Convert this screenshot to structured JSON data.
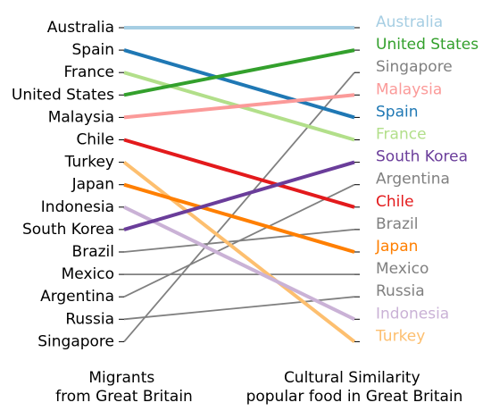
{
  "chart_data": {
    "type": "line",
    "subtype": "slope",
    "x": [
      "Migrants from Great Britain",
      "Cultural Similarity popular food in Great Britain"
    ],
    "xlabel_lines": [
      [
        "Migrants",
        "from Great Britain"
      ],
      [
        "Cultural Similarity",
        "popular food in Great Britain"
      ]
    ],
    "left_order": [
      "Australia",
      "Spain",
      "France",
      "United States",
      "Malaysia",
      "Chile",
      "Turkey",
      "Japan",
      "Indonesia",
      "South Korea",
      "Brazil",
      "Mexico",
      "Argentina",
      "Russia",
      "Singapore"
    ],
    "right_order": [
      "Australia",
      "United States",
      "Singapore",
      "Malaysia",
      "Spain",
      "France",
      "South Korea",
      "Argentina",
      "Chile",
      "Brazil",
      "Japan",
      "Mexico",
      "Russia",
      "Indonesia",
      "Turkey"
    ],
    "series": [
      {
        "name": "Australia",
        "values": [
          1,
          1
        ],
        "color": "#a6cee3",
        "highlight": true
      },
      {
        "name": "Spain",
        "values": [
          2,
          5
        ],
        "color": "#1f78b4",
        "highlight": true
      },
      {
        "name": "France",
        "values": [
          3,
          6
        ],
        "color": "#b2df8a",
        "highlight": true
      },
      {
        "name": "United States",
        "values": [
          4,
          2
        ],
        "color": "#33a02c",
        "highlight": true
      },
      {
        "name": "Malaysia",
        "values": [
          5,
          4
        ],
        "color": "#fb9a99",
        "highlight": true
      },
      {
        "name": "Chile",
        "values": [
          6,
          9
        ],
        "color": "#e31a1c",
        "highlight": true
      },
      {
        "name": "Turkey",
        "values": [
          7,
          15
        ],
        "color": "#fdbf6f",
        "highlight": true
      },
      {
        "name": "Japan",
        "values": [
          8,
          11
        ],
        "color": "#ff7f00",
        "highlight": true
      },
      {
        "name": "Indonesia",
        "values": [
          9,
          14
        ],
        "color": "#cab2d6",
        "highlight": true
      },
      {
        "name": "South Korea",
        "values": [
          10,
          7
        ],
        "color": "#6a3d9a",
        "highlight": true
      },
      {
        "name": "Brazil",
        "values": [
          11,
          10
        ],
        "color": "#808080",
        "highlight": false
      },
      {
        "name": "Mexico",
        "values": [
          12,
          12
        ],
        "color": "#808080",
        "highlight": false
      },
      {
        "name": "Argentina",
        "values": [
          13,
          8
        ],
        "color": "#808080",
        "highlight": false
      },
      {
        "name": "Russia",
        "values": [
          14,
          13
        ],
        "color": "#808080",
        "highlight": false
      },
      {
        "name": "Singapore",
        "values": [
          15,
          3
        ],
        "color": "#808080",
        "highlight": false
      }
    ],
    "ylim": [
      1,
      15
    ],
    "y_inverted": true,
    "grid": false
  }
}
